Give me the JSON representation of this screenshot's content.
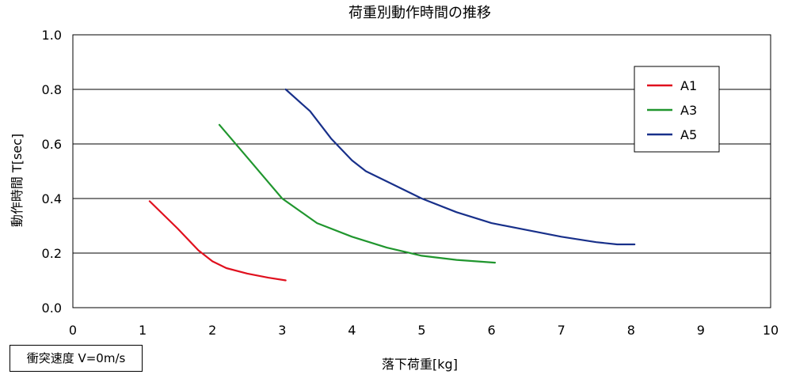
{
  "chart_data": {
    "type": "line",
    "title": "荷重別動作時間の推移",
    "xlabel": "落下荷重[kg]",
    "ylabel": "動作時間 T[sec]",
    "xlim": [
      0,
      10
    ],
    "ylim": [
      0,
      1.0
    ],
    "x_ticks": [
      0,
      1,
      2,
      3,
      4,
      5,
      6,
      7,
      8,
      9,
      10
    ],
    "y_ticks": [
      0.0,
      0.2,
      0.4,
      0.6,
      0.8,
      1.0
    ],
    "y_tick_labels": [
      "0.0",
      "0.2",
      "0.4",
      "0.6",
      "0.8",
      "1.0"
    ],
    "grid": "horizontal",
    "legend_position": "top-right",
    "series": [
      {
        "name": "A1",
        "color": "#e0101e",
        "points": [
          [
            1.1,
            0.39
          ],
          [
            1.5,
            0.29
          ],
          [
            1.8,
            0.21
          ],
          [
            2.0,
            0.17
          ],
          [
            2.2,
            0.145
          ],
          [
            2.5,
            0.125
          ],
          [
            2.8,
            0.11
          ],
          [
            3.05,
            0.1
          ]
        ]
      },
      {
        "name": "A3",
        "color": "#20962e",
        "points": [
          [
            2.1,
            0.67
          ],
          [
            2.5,
            0.55
          ],
          [
            2.8,
            0.46
          ],
          [
            3.0,
            0.4
          ],
          [
            3.5,
            0.31
          ],
          [
            4.0,
            0.26
          ],
          [
            4.5,
            0.22
          ],
          [
            5.0,
            0.19
          ],
          [
            5.5,
            0.175
          ],
          [
            6.05,
            0.165
          ]
        ]
      },
      {
        "name": "A5",
        "color": "#18308a",
        "points": [
          [
            3.05,
            0.8
          ],
          [
            3.4,
            0.72
          ],
          [
            3.7,
            0.62
          ],
          [
            4.0,
            0.54
          ],
          [
            4.2,
            0.5
          ],
          [
            4.6,
            0.45
          ],
          [
            5.0,
            0.4
          ],
          [
            5.5,
            0.35
          ],
          [
            6.0,
            0.31
          ],
          [
            6.5,
            0.285
          ],
          [
            7.0,
            0.26
          ],
          [
            7.5,
            0.24
          ],
          [
            7.8,
            0.232
          ],
          [
            8.05,
            0.232
          ]
        ]
      }
    ]
  },
  "note": {
    "text": "衝突速度 V=0m/s"
  }
}
